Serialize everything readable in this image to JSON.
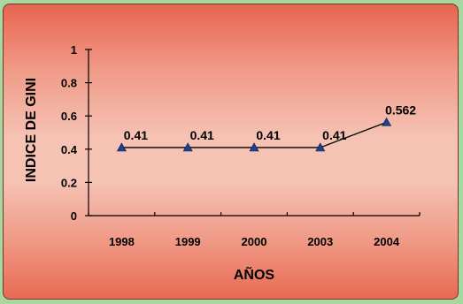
{
  "chart_data": {
    "type": "line",
    "categories": [
      "1998",
      "1999",
      "2000",
      "2003",
      "2004"
    ],
    "series": [
      {
        "values": [
          0.41,
          0.41,
          0.41,
          0.41,
          0.562
        ]
      }
    ],
    "data_labels": [
      "0.41",
      "0.41",
      "0.41",
      "0.41",
      "0.562"
    ],
    "xlabel": "AÑOS",
    "ylabel": "INDICE DE GINI",
    "ylim": [
      0,
      1
    ],
    "yticks": [
      "0",
      "0.2",
      "0.4",
      "0.6",
      "0.8",
      "1"
    ],
    "grid": false,
    "line_color": "#000000",
    "marker_color": "#1f3f8f"
  }
}
